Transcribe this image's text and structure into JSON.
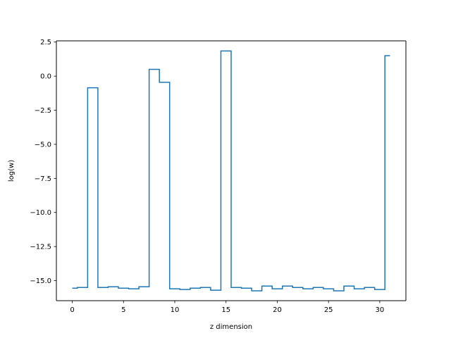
{
  "chart_data": {
    "type": "line",
    "style": "step",
    "xlabel": "z dimension",
    "ylabel": "log(w)",
    "xlim": [
      -1.55,
      32.55
    ],
    "ylim": [
      -16.47,
      2.59
    ],
    "xticks": [
      0,
      5,
      10,
      15,
      20,
      25,
      30
    ],
    "yticks": [
      2.5,
      0.0,
      -2.5,
      -5.0,
      -7.5,
      -10.0,
      -12.5,
      -15.0
    ],
    "xtick_labels": [
      "0",
      "5",
      "10",
      "15",
      "20",
      "25",
      "30"
    ],
    "ytick_labels": [
      "2.5",
      "0.0",
      "−2.5",
      "−5.0",
      "−7.5",
      "−10.0",
      "−12.5",
      "−15.0"
    ],
    "grid": false,
    "series": [
      {
        "color": "#1f77b4",
        "x": [
          0,
          1,
          2,
          3,
          4,
          5,
          6,
          7,
          8,
          9,
          10,
          11,
          12,
          13,
          14,
          15,
          16,
          17,
          18,
          19,
          20,
          21,
          22,
          23,
          24,
          25,
          26,
          27,
          28,
          29,
          30,
          31
        ],
        "y": [
          -15.55,
          -15.5,
          -0.85,
          -15.5,
          -15.45,
          -15.55,
          -15.6,
          -15.45,
          0.5,
          -0.45,
          -15.6,
          -15.65,
          -15.55,
          -15.5,
          -15.7,
          1.85,
          -15.5,
          -15.55,
          -15.75,
          -15.4,
          -15.6,
          -15.4,
          -15.5,
          -15.6,
          -15.5,
          -15.6,
          -15.75,
          -15.4,
          -15.6,
          -15.5,
          -15.65,
          1.5
        ]
      }
    ]
  }
}
